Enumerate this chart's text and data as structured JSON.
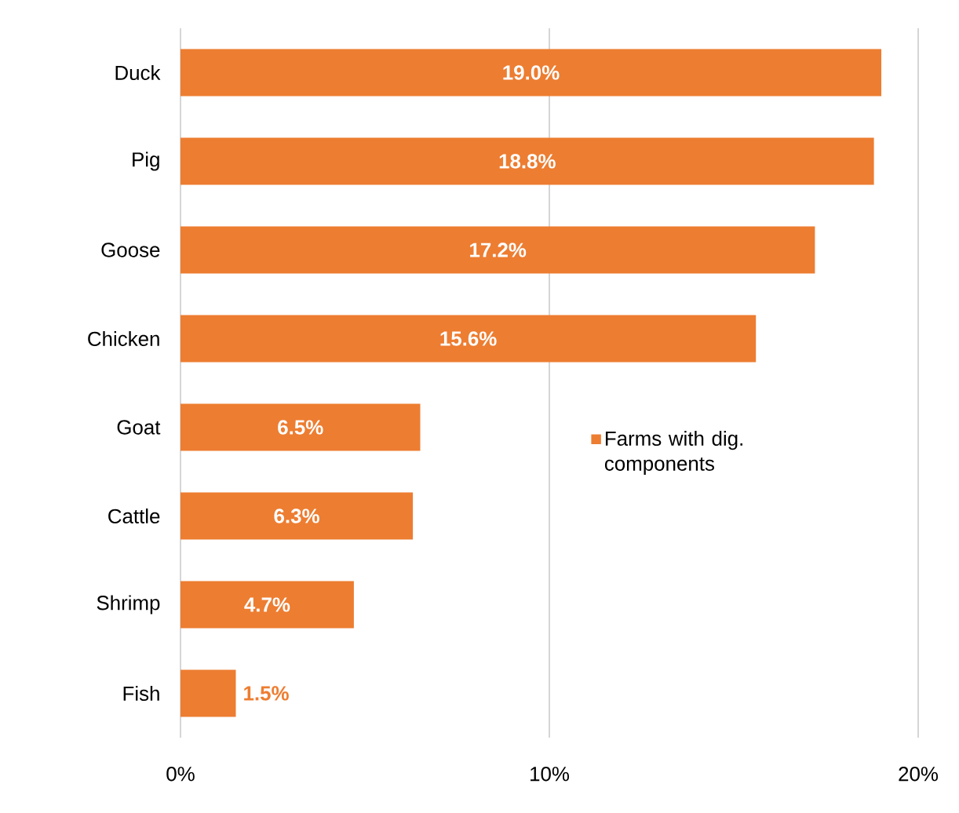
{
  "chart_data": {
    "type": "bar",
    "orientation": "horizontal",
    "categories": [
      "Duck",
      "Pig",
      "Goose",
      "Chicken",
      "Goat",
      "Cattle",
      "Shrimp",
      "Fish"
    ],
    "series": [
      {
        "name": "Farms with dig. components",
        "color": "#ed7d31",
        "values": [
          19.0,
          18.8,
          17.2,
          15.6,
          6.5,
          6.3,
          4.7,
          1.5
        ],
        "value_labels": [
          "19.0%",
          "18.8%",
          "17.2%",
          "15.6%",
          "6.5%",
          "6.3%",
          "4.7%",
          "1.5%"
        ]
      }
    ],
    "xlim": [
      0,
      20
    ],
    "xticks": [
      {
        "value": 0,
        "label": "0%"
      },
      {
        "value": 10,
        "label": "10%"
      },
      {
        "value": 20,
        "label": "20%"
      }
    ],
    "grid": "x",
    "legend": "right"
  }
}
